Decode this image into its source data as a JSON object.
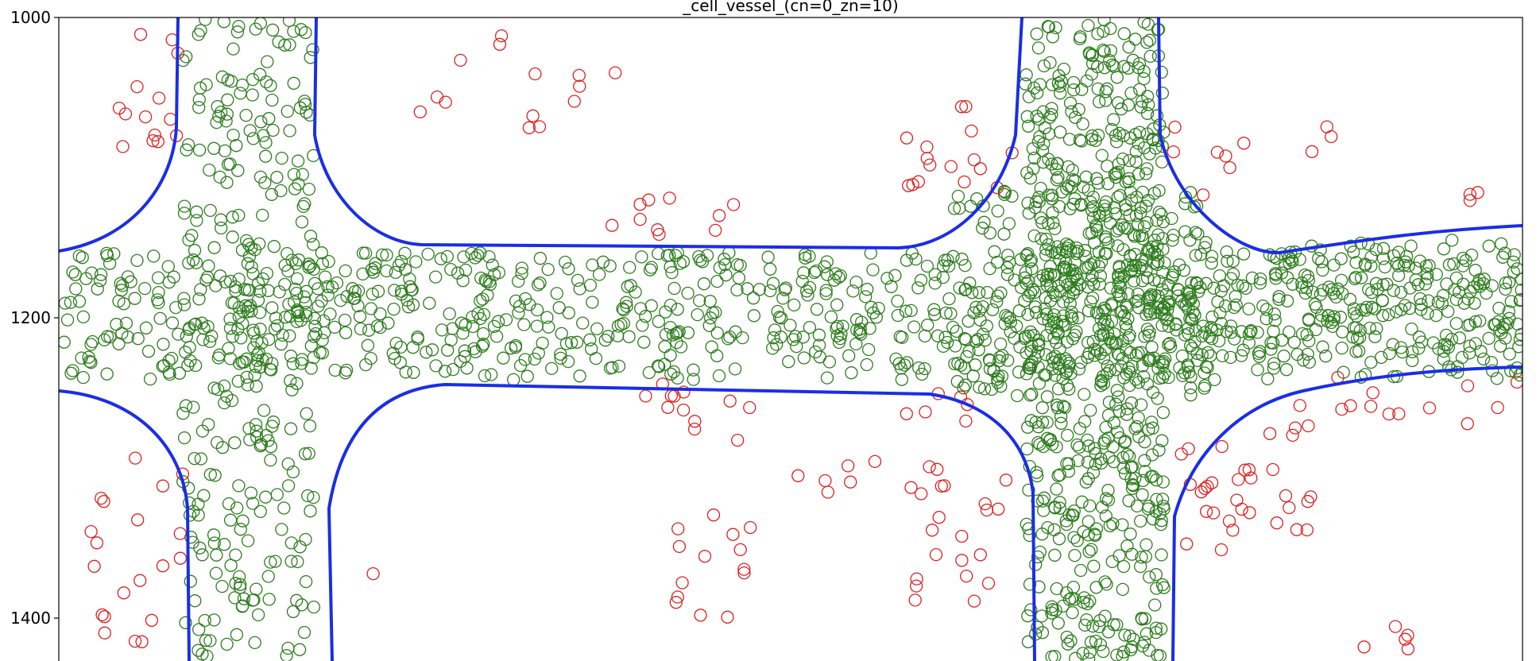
{
  "chart_data": {
    "type": "scatter",
    "title": "_cell_vessel_(cn=0_zn=10)",
    "xlabel": "",
    "ylabel": "",
    "y_ticks": [
      "1000",
      "1200",
      "1400"
    ],
    "ylim": [
      1000,
      1430
    ],
    "y_inverted": true,
    "grid": false,
    "legend": "none",
    "colors": {
      "inside": "#2e7d1e",
      "outside": "#e02020",
      "vessel": "#1a2ee6"
    },
    "series": [
      {
        "marker": "open-circle",
        "color_key": "inside"
      },
      {
        "marker": "open-circle",
        "color_key": "outside"
      },
      {
        "marker": "boundary-line",
        "color_key": "vessel"
      }
    ]
  }
}
